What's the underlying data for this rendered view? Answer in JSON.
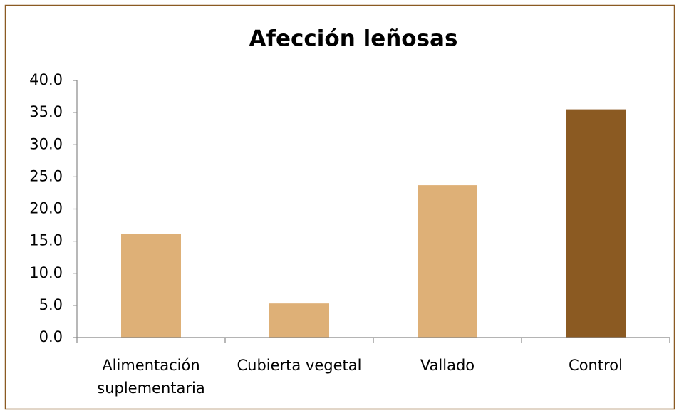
{
  "chart_data": {
    "type": "bar",
    "title": "Afección leñosas",
    "categories": [
      "Alimentación suplementaria",
      "Cubierta vegetal",
      "Vallado",
      "Control"
    ],
    "values": [
      16.1,
      5.3,
      23.7,
      35.5
    ],
    "colors": [
      "#deb077",
      "#deb077",
      "#deb077",
      "#8b5a22"
    ],
    "ylim": [
      0,
      40
    ],
    "yticks": [
      {
        "value": 0,
        "label": "0.0"
      },
      {
        "value": 5,
        "label": "5.0"
      },
      {
        "value": 10,
        "label": "10.0"
      },
      {
        "value": 15,
        "label": "15.0"
      },
      {
        "value": 20,
        "label": "20.0"
      },
      {
        "value": 25,
        "label": "25.0"
      },
      {
        "value": 30,
        "label": "30.0"
      },
      {
        "value": 35,
        "label": "35.0"
      },
      {
        "value": 40,
        "label": "40.0"
      }
    ],
    "grid": false
  }
}
